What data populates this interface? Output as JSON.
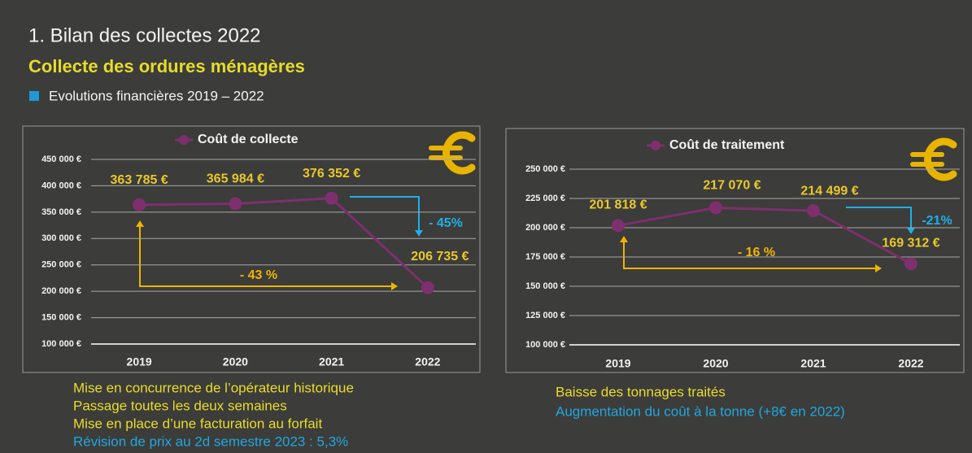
{
  "slide": {
    "title": "1. Bilan des collectes 2022",
    "subtitle": "Collecte des ordures ménagères",
    "section": "Evolutions financières 2019 – 2022"
  },
  "chart_data": [
    {
      "type": "line",
      "categories": [
        "2019",
        "2020",
        "2021",
        "2022"
      ],
      "series": [
        {
          "name": "Coût de collecte",
          "color": "#7e2f6e",
          "values": [
            363785,
            365984,
            376352,
            206735
          ],
          "value_labels": [
            "363 785 €",
            "365 984 €",
            "376 352 €",
            "206 735 €"
          ]
        }
      ],
      "ylim": [
        100000,
        450000
      ],
      "yticks": [
        {
          "value": 100000,
          "label": "100 000 €"
        },
        {
          "value": 150000,
          "label": "150 000 €"
        },
        {
          "value": 200000,
          "label": "200 000 €"
        },
        {
          "value": 250000,
          "label": "250 000 €"
        },
        {
          "value": 300000,
          "label": "300 000 €"
        },
        {
          "value": 350000,
          "label": "350 000 €"
        },
        {
          "value": 400000,
          "label": "400 000 €"
        },
        {
          "value": 450000,
          "label": "450 000 €"
        }
      ],
      "grid": true,
      "annotations": [
        "- 43 %",
        "- 45%"
      ]
    },
    {
      "type": "line",
      "categories": [
        "2019",
        "2020",
        "2021",
        "2022"
      ],
      "series": [
        {
          "name": "Coût de traitement",
          "color": "#7e2f6e",
          "values": [
            201818,
            217070,
            214499,
            169312
          ],
          "value_labels": [
            "201 818 €",
            "217 070 €",
            "214 499 €",
            "169 312 €"
          ]
        }
      ],
      "ylim": [
        100000,
        250000
      ],
      "yticks": [
        {
          "value": 100000,
          "label": "100 000 €"
        },
        {
          "value": 125000,
          "label": "125 000 €"
        },
        {
          "value": 150000,
          "label": "150 000 €"
        },
        {
          "value": 175000,
          "label": "175 000 €"
        },
        {
          "value": 200000,
          "label": "200 000 €"
        },
        {
          "value": 225000,
          "label": "225 000 €"
        },
        {
          "value": 250000,
          "label": "250 000 €"
        }
      ],
      "grid": true,
      "annotations": [
        "- 16 %",
        "-21%"
      ]
    }
  ],
  "notes": {
    "left": [
      "Mise en concurrence de l’opérateur historique",
      "Passage toutes les deux semaines",
      "Mise en place d’une facturation au forfait",
      "Révision de prix au 2d semestre 2023 : 5,3%"
    ],
    "right": [
      "Baisse des tonnages traités",
      "Augmentation du coût à la tonne (+8€ en 2022)"
    ]
  }
}
